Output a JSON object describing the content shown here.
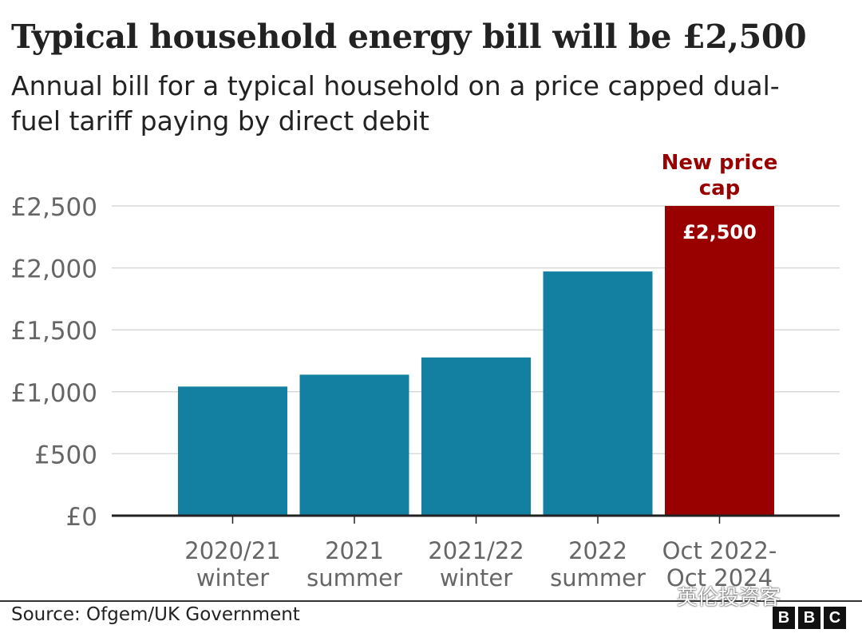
{
  "title": "Typical household energy bill will be £2,500",
  "subtitle": "Annual bill for a typical household on a price capped dual-fuel tariff paying by direct debit",
  "chart_data": {
    "type": "bar",
    "categories": [
      [
        "2020/21",
        "winter"
      ],
      [
        "2021",
        "summer"
      ],
      [
        "2021/22",
        "winter"
      ],
      [
        "2022",
        "summer"
      ],
      [
        "Oct 2022-",
        "Oct 2024"
      ]
    ],
    "values": [
      1042,
      1138,
      1277,
      1971,
      2500
    ],
    "ylim": [
      0,
      2500
    ],
    "yticks": [
      0,
      500,
      1000,
      1500,
      2000,
      2500
    ],
    "ytick_labels": [
      "£0",
      "£500",
      "£1,000",
      "£1,500",
      "£2,000",
      "£2,500"
    ],
    "grid": true,
    "bar_colors": [
      "#1380a1",
      "#1380a1",
      "#1380a1",
      "#1380a1",
      "#990000"
    ],
    "highlight_bar": {
      "index": 4,
      "value_label": "£2,500",
      "annotation": [
        "New price",
        "cap"
      ]
    },
    "annotation_color": "#990000",
    "grid_color": "#d9d9d9",
    "axis_color": "#222222",
    "label_color": "#666666"
  },
  "source": "Source: Ofgem/UK Government",
  "watermark": "英伦投资客",
  "logo": [
    "B",
    "B",
    "C"
  ]
}
